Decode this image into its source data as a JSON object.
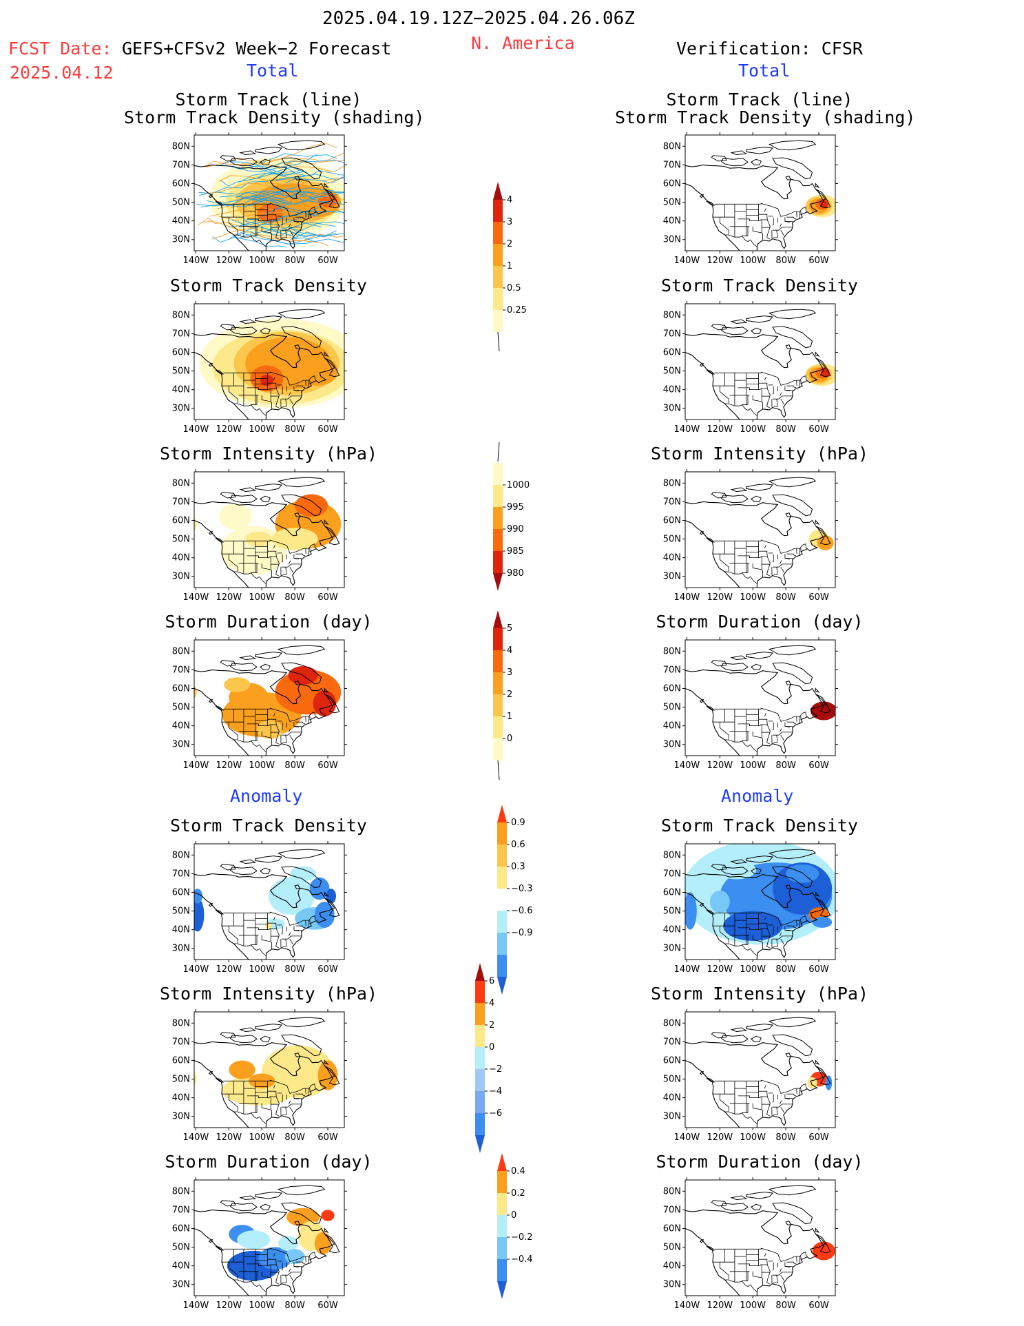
{
  "header": {
    "period": "2025.04.19.12Z−2025.04.26.06Z",
    "fcst_label": "FCST Date:",
    "fcst_model": "GEFS+CFSv2 Week−2 Forecast",
    "fcst_date": "2025.04.12",
    "region": "N. America",
    "verification": "Verification: CFSR"
  },
  "sections": {
    "total_left": "Total",
    "total_right": "Total",
    "anomaly_left": "Anomaly",
    "anomaly_right": "Anomaly"
  },
  "panel_titles": {
    "track_line": "Storm Track (line)",
    "track_shading": "Storm Track Density (shading)",
    "density": "Storm Track Density",
    "intensity": "Storm Intensity (hPa)",
    "duration": "Storm Duration (day)"
  },
  "axes": {
    "lat_labels": [
      "80N",
      "70N",
      "60N",
      "50N",
      "40N",
      "30N"
    ],
    "lon_labels": [
      "140W",
      "120W",
      "100W",
      "80W",
      "60W"
    ]
  },
  "colorbars": {
    "density_total": {
      "labels": [
        "4",
        "3",
        "2",
        "1",
        "0.5",
        "0.25"
      ],
      "colors": [
        "#a50d0d",
        "#e0250f",
        "#f96a0e",
        "#fa9f1e",
        "#fbc64b",
        "#fde88a",
        "#fffac8"
      ]
    },
    "intensity_total": {
      "labels": [
        "1000",
        "995",
        "990",
        "985",
        "980"
      ],
      "colors": [
        "#fffac8",
        "#fde88a",
        "#fa9f1e",
        "#f96a0e",
        "#e0250f",
        "#a50d0d"
      ]
    },
    "duration_total": {
      "labels": [
        "5",
        "4",
        "3",
        "2",
        "1",
        "0"
      ],
      "colors": [
        "#a50d0d",
        "#e0250f",
        "#f96a0e",
        "#fa9f1e",
        "#fbc64b",
        "#fde88a",
        "#fffac8"
      ]
    },
    "density_anom": {
      "labels": [
        "0.9",
        "0.6",
        "0.3",
        "−0.3",
        "−0.6",
        "−0.9"
      ],
      "colors": [
        "#ff3b14",
        "#fa9f1e",
        "#fbc64b",
        "#fde88a",
        "#ffffff",
        "#b4eefa",
        "#78c8f5",
        "#3c8ef0",
        "#1c5fd6"
      ]
    },
    "intensity_anom": {
      "labels": [
        "6",
        "4",
        "2",
        "0",
        "−2",
        "−4",
        "−6"
      ],
      "colors": [
        "#a50d0d",
        "#ff3b14",
        "#fa9f1e",
        "#fde88a",
        "#b4eefa",
        "#a0c8f5",
        "#78aaf0",
        "#3c8ef0",
        "#1c5fd6"
      ]
    },
    "duration_anom": {
      "labels": [
        "0.4",
        "0.2",
        "0",
        "−0.2",
        "−0.4"
      ],
      "colors": [
        "#ff3b14",
        "#fa9f1e",
        "#fde88a",
        "#b4eefa",
        "#78c8f5",
        "#3c8ef0",
        "#1c5fd6"
      ]
    }
  },
  "legend_colors": {
    "track_line": "#1ea0e6"
  }
}
